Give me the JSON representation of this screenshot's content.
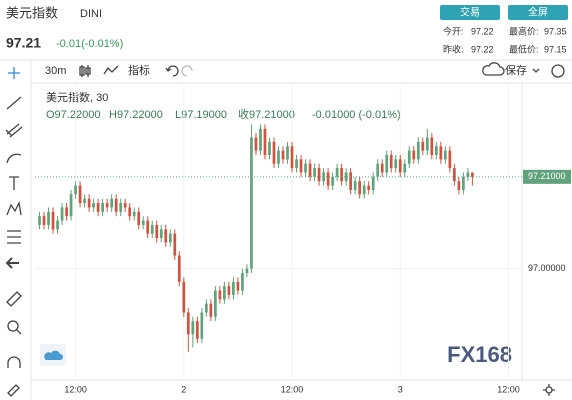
{
  "header": {
    "title": "美元指数",
    "symbol": "DINI",
    "price": "97.21",
    "change": "-0.01(-0.01%)",
    "buttons": [
      "交易",
      "全屏"
    ],
    "stats": [
      [
        "今开:",
        "97.22"
      ],
      [
        "最高价:",
        "97.35"
      ],
      [
        "昨收:",
        "97.22"
      ],
      [
        "最低价:",
        "97.15"
      ]
    ]
  },
  "toolbar": {
    "interval": "30m",
    "indicators": "指标",
    "save": "保存"
  },
  "legend": {
    "name": "美元指数, 30",
    "ohlc": [
      "O97.22000",
      "H97.22000",
      "L97.19000",
      "收97.21000",
      "-0.01000 (-0.01%)"
    ]
  },
  "watermark": "FX168",
  "chart_data": {
    "type": "candlestick",
    "up_color": "#5fa27b",
    "down_color": "#d0533f",
    "grid": true,
    "xlim": [
      -1,
      107
    ],
    "ylim": [
      96.75,
      97.42
    ],
    "xticks": [
      {
        "value": 8,
        "label": "12:00"
      },
      {
        "value": 32,
        "label": "2"
      },
      {
        "value": 56,
        "label": "12:00"
      },
      {
        "value": 80,
        "label": "3"
      },
      {
        "value": 104,
        "label": "12:00"
      }
    ],
    "yticks": [
      {
        "value": 97,
        "label": "97.00000"
      }
    ],
    "last_price": {
      "value": 97.21,
      "label": "97.21000"
    },
    "open": [
      97.1,
      97.12,
      97.1,
      97.13,
      97.09,
      97.11,
      97.14,
      97.12,
      97.17,
      97.19,
      97.15,
      97.16,
      97.14,
      97.15,
      97.13,
      97.15,
      97.14,
      97.16,
      97.13,
      97.15,
      97.14,
      97.12,
      97.13,
      97.1,
      97.11,
      97.08,
      97.1,
      97.07,
      97.09,
      97.06,
      97.08,
      97.03,
      96.97,
      96.9,
      96.85,
      96.88,
      96.84,
      96.9,
      96.92,
      96.89,
      96.95,
      96.93,
      96.96,
      96.94,
      96.97,
      96.95,
      96.99,
      97.0,
      97.3,
      97.27,
      97.32,
      97.26,
      97.29,
      97.24,
      97.27,
      97.25,
      97.28,
      97.23,
      97.25,
      97.22,
      97.24,
      97.21,
      97.23,
      97.2,
      97.22,
      97.19,
      97.21,
      97.23,
      97.2,
      97.22,
      97.18,
      97.2,
      97.17,
      97.19,
      97.18,
      97.21,
      97.24,
      97.22,
      97.26,
      97.23,
      97.25,
      97.22,
      97.24,
      97.27,
      97.25,
      97.29,
      97.27,
      97.3,
      97.26,
      97.28,
      97.25,
      97.27,
      97.23,
      97.2,
      97.18,
      97.21,
      97.22
    ],
    "high": [
      97.13,
      97.13,
      97.14,
      97.14,
      97.12,
      97.15,
      97.15,
      97.18,
      97.2,
      97.2,
      97.17,
      97.17,
      97.16,
      97.16,
      97.16,
      97.16,
      97.17,
      97.17,
      97.16,
      97.16,
      97.15,
      97.14,
      97.14,
      97.12,
      97.12,
      97.11,
      97.11,
      97.1,
      97.1,
      97.09,
      97.09,
      97.04,
      96.98,
      96.91,
      96.89,
      96.89,
      96.91,
      96.93,
      96.93,
      96.96,
      96.96,
      96.97,
      96.97,
      96.98,
      96.98,
      97.0,
      97.01,
      97.33,
      97.31,
      97.33,
      97.33,
      97.3,
      97.3,
      97.28,
      97.28,
      97.29,
      97.29,
      97.26,
      97.26,
      97.25,
      97.25,
      97.24,
      97.24,
      97.23,
      97.23,
      97.22,
      97.24,
      97.24,
      97.23,
      97.23,
      97.21,
      97.21,
      97.2,
      97.2,
      97.22,
      97.25,
      97.25,
      97.27,
      97.27,
      97.26,
      97.26,
      97.25,
      97.28,
      97.28,
      97.3,
      97.3,
      97.32,
      97.31,
      97.29,
      97.29,
      97.28,
      97.28,
      97.24,
      97.21,
      97.22,
      97.23,
      97.22
    ],
    "low": [
      97.09,
      97.09,
      97.09,
      97.08,
      97.08,
      97.1,
      97.11,
      97.11,
      97.16,
      97.14,
      97.14,
      97.13,
      97.13,
      97.12,
      97.12,
      97.13,
      97.13,
      97.12,
      97.12,
      97.13,
      97.11,
      97.11,
      97.09,
      97.09,
      97.07,
      97.07,
      97.06,
      97.06,
      97.05,
      97.05,
      97.02,
      96.96,
      96.89,
      96.81,
      96.82,
      96.83,
      96.83,
      96.89,
      96.88,
      96.88,
      96.92,
      96.92,
      96.93,
      96.93,
      96.94,
      96.94,
      96.98,
      96.99,
      97.26,
      97.26,
      97.25,
      97.25,
      97.23,
      97.23,
      97.24,
      97.24,
      97.22,
      97.22,
      97.21,
      97.21,
      97.2,
      97.2,
      97.19,
      97.19,
      97.18,
      97.18,
      97.2,
      97.19,
      97.19,
      97.17,
      97.17,
      97.16,
      97.16,
      97.17,
      97.17,
      97.2,
      97.21,
      97.21,
      97.22,
      97.22,
      97.21,
      97.21,
      97.23,
      97.24,
      97.24,
      97.26,
      97.26,
      97.25,
      97.25,
      97.24,
      97.24,
      97.22,
      97.19,
      97.17,
      97.17,
      97.2,
      97.19
    ],
    "close": [
      97.12,
      97.1,
      97.13,
      97.09,
      97.11,
      97.14,
      97.12,
      97.17,
      97.19,
      97.15,
      97.16,
      97.14,
      97.15,
      97.13,
      97.15,
      97.14,
      97.16,
      97.13,
      97.15,
      97.14,
      97.12,
      97.13,
      97.1,
      97.11,
      97.08,
      97.1,
      97.07,
      97.09,
      97.06,
      97.08,
      97.03,
      96.97,
      96.9,
      96.85,
      96.88,
      96.84,
      96.9,
      96.92,
      96.89,
      96.95,
      96.93,
      96.96,
      96.94,
      96.97,
      96.95,
      96.99,
      97.0,
      97.3,
      97.27,
      97.32,
      97.26,
      97.29,
      97.24,
      97.27,
      97.25,
      97.28,
      97.23,
      97.25,
      97.22,
      97.24,
      97.21,
      97.23,
      97.2,
      97.22,
      97.19,
      97.21,
      97.23,
      97.2,
      97.22,
      97.18,
      97.2,
      97.17,
      97.19,
      97.18,
      97.21,
      97.24,
      97.22,
      97.26,
      97.23,
      97.25,
      97.22,
      97.24,
      97.27,
      97.25,
      97.29,
      97.27,
      97.3,
      97.26,
      97.28,
      97.25,
      97.27,
      97.23,
      97.2,
      97.18,
      97.21,
      97.22,
      97.21
    ]
  }
}
